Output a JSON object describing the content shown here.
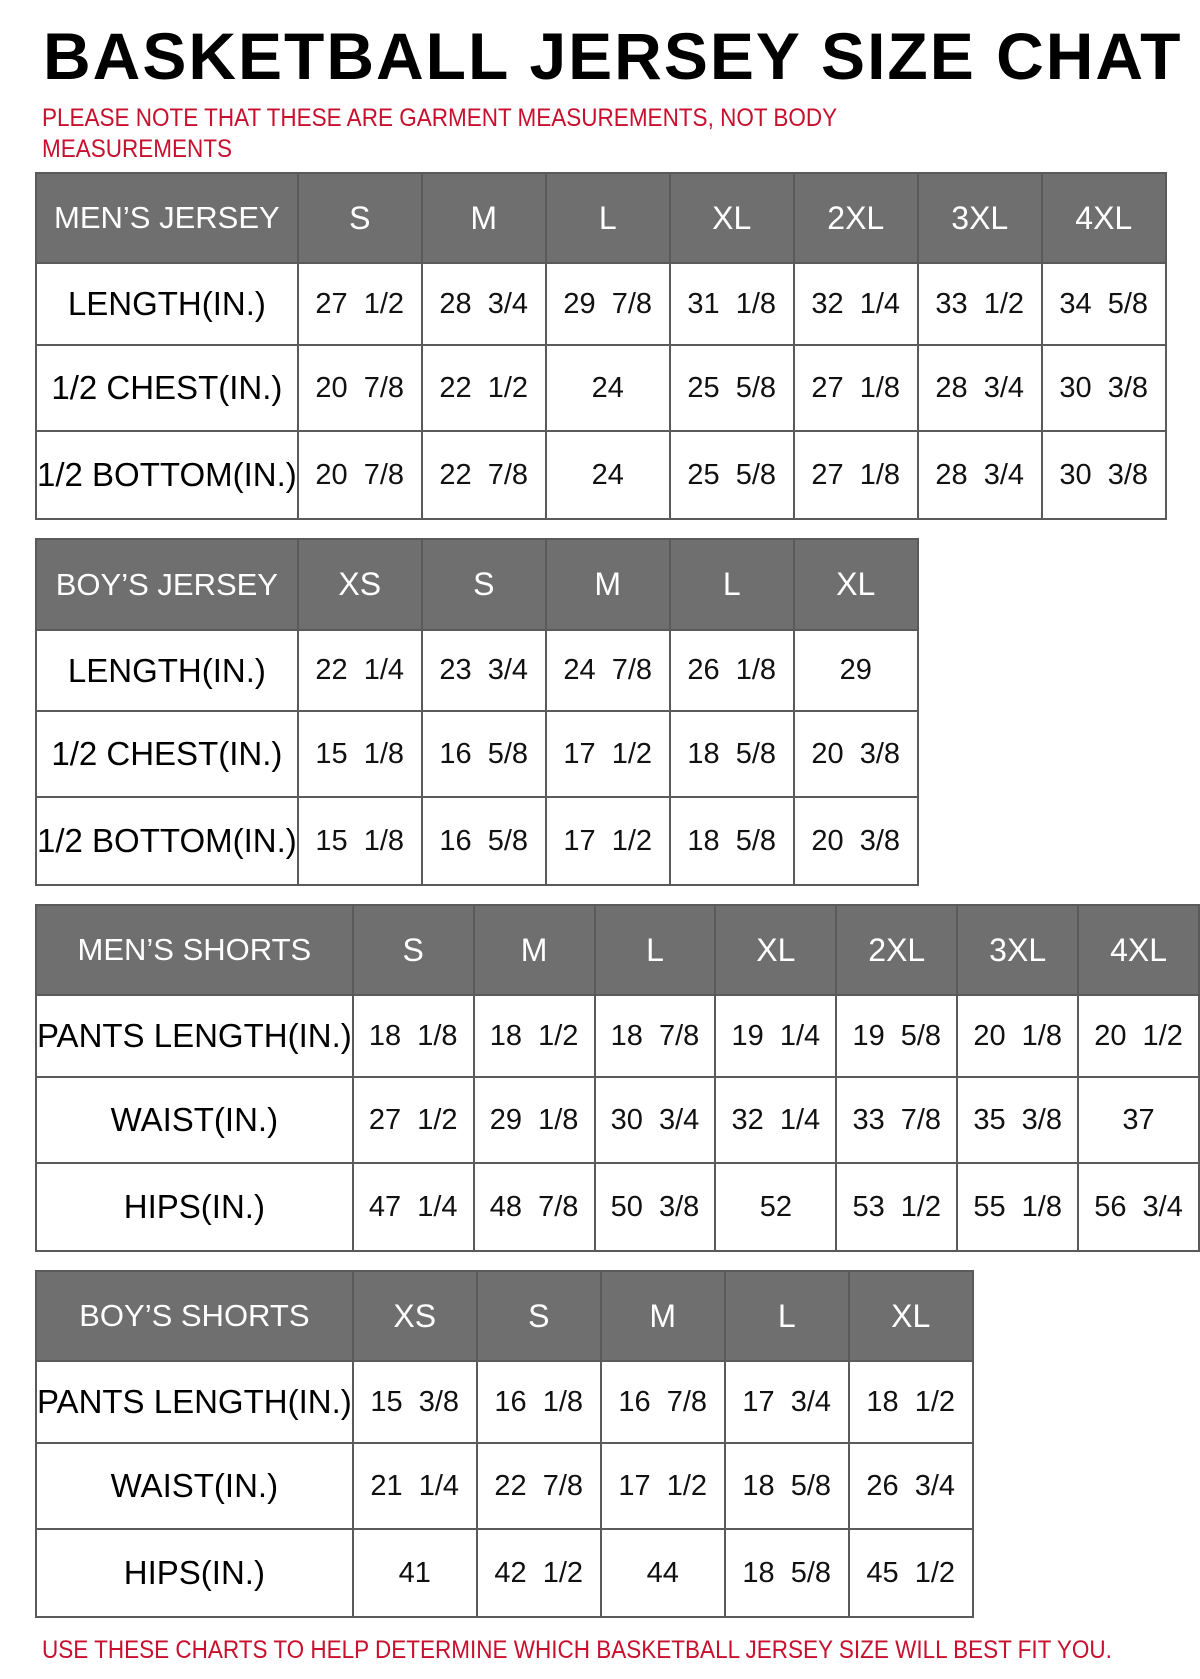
{
  "title": "BASKETBALL JERSEY SIZE CHAT",
  "note": "PLEASE NOTE THAT THESE ARE GARMENT MEASUREMENTS, NOT BODY MEASUREMENTS",
  "footer": "USE THESE CHARTS TO HELP DETERMINE WHICH BASKETBALL JERSEY SIZE WILL BEST FIT YOU.",
  "colors": {
    "header_bg": "#6f6f6f",
    "note_red": "#c8102e"
  },
  "tables": [
    {
      "name": "MEN’S JERSEY",
      "sizes": [
        "S",
        "M",
        "L",
        "XL",
        "2XL",
        "3XL",
        "4XL"
      ],
      "rows": [
        {
          "label": "LENGTH(IN.)",
          "values": [
            "27 1/2",
            "28 3/4",
            "29 7/8",
            "31 1/8",
            "32 1/4",
            "33 1/2",
            "34 5/8"
          ]
        },
        {
          "label": "1/2 CHEST(IN.)",
          "values": [
            "20 7/8",
            "22 1/2",
            "24",
            "25 5/8",
            "27 1/8",
            "28 3/4",
            "30 3/8"
          ]
        },
        {
          "label": "1/2 BOTTOM(IN.)",
          "values": [
            "20 7/8",
            "22 7/8",
            "24",
            "25 5/8",
            "27 1/8",
            "28 3/4",
            "30 3/8"
          ]
        }
      ]
    },
    {
      "name": "BOY’S JERSEY",
      "sizes": [
        "XS",
        "S",
        "M",
        "L",
        "XL"
      ],
      "rows": [
        {
          "label": "LENGTH(IN.)",
          "values": [
            "22 1/4",
            "23 3/4",
            "24 7/8",
            "26 1/8",
            "29"
          ]
        },
        {
          "label": "1/2 CHEST(IN.)",
          "values": [
            "15 1/8",
            "16 5/8",
            "17 1/2",
            "18 5/8",
            "20 3/8"
          ]
        },
        {
          "label": "1/2 BOTTOM(IN.)",
          "values": [
            "15 1/8",
            "16 5/8",
            "17 1/2",
            "18 5/8",
            "20 3/8"
          ]
        }
      ]
    },
    {
      "name": "MEN’S SHORTS",
      "sizes": [
        "S",
        "M",
        "L",
        "XL",
        "2XL",
        "3XL",
        "4XL"
      ],
      "rows": [
        {
          "label": "PANTS LENGTH(IN.)",
          "values": [
            "18 1/8",
            "18 1/2",
            "18 7/8",
            "19 1/4",
            "19 5/8",
            "20 1/8",
            "20 1/2"
          ]
        },
        {
          "label": "WAIST(IN.)",
          "values": [
            "27 1/2",
            "29 1/8",
            "30 3/4",
            "32 1/4",
            "33 7/8",
            "35 3/8",
            "37"
          ]
        },
        {
          "label": "HIPS(IN.)",
          "values": [
            "47 1/4",
            "48 7/8",
            "50 3/8",
            "52",
            "53 1/2",
            "55 1/8",
            "56 3/4"
          ]
        }
      ]
    },
    {
      "name": "BOY’S SHORTS",
      "sizes": [
        "XS",
        "S",
        "M",
        "L",
        "XL"
      ],
      "rows": [
        {
          "label": "PANTS LENGTH(IN.)",
          "values": [
            "15 3/8",
            "16 1/8",
            "16 7/8",
            "17 3/4",
            "18 1/2"
          ]
        },
        {
          "label": "WAIST(IN.)",
          "values": [
            "21 1/4",
            "22 7/8",
            "17 1/2",
            "18 5/8",
            "26 3/4"
          ]
        },
        {
          "label": "HIPS(IN.)",
          "values": [
            "41",
            "42 1/2",
            "44",
            "18 5/8",
            "45 1/2"
          ]
        }
      ]
    }
  ]
}
